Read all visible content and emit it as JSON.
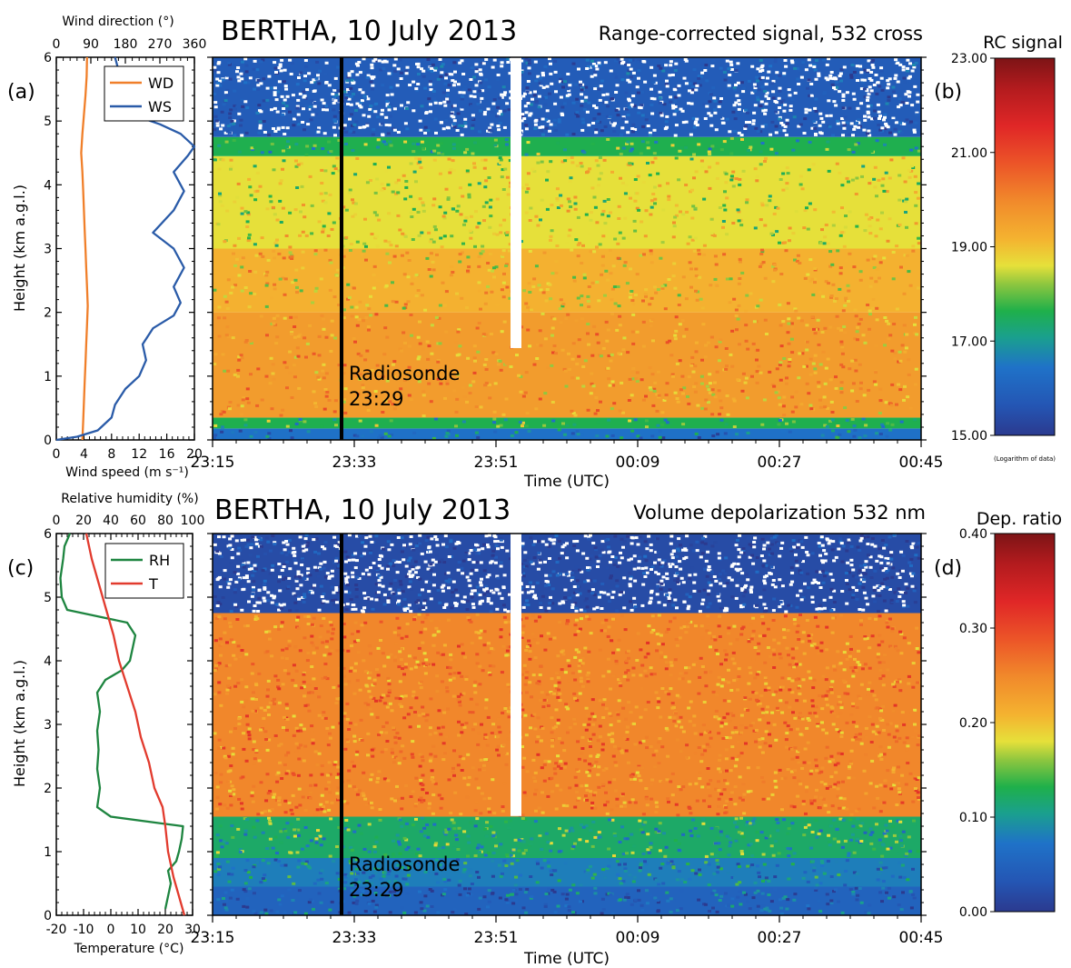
{
  "chart_data": [
    {
      "type": "line",
      "panel_label": "(a)",
      "ylabel": "Height (km a.g.l.)",
      "ylim": [
        0,
        6
      ],
      "yticks": [
        "0",
        "1",
        "2",
        "3",
        "4",
        "5",
        "6"
      ],
      "xlabel_bottom": "Wind speed (m s⁻¹)",
      "xlim_bottom": [
        0,
        20
      ],
      "xticks_bottom": [
        "0",
        "4",
        "8",
        "12",
        "16",
        "20"
      ],
      "xlabel_top": "Wind direction (°)",
      "xlim_top": [
        0,
        360
      ],
      "xticks_top": [
        "0",
        "90",
        "180",
        "270",
        "360"
      ],
      "legend": "top-right",
      "series": [
        {
          "name": "WD",
          "axis": "top",
          "color": "#f07f2a",
          "points": [
            [
              68,
              0.0
            ],
            [
              70,
              0.3
            ],
            [
              72,
              0.6
            ],
            [
              74,
              0.9
            ],
            [
              76,
              1.2
            ],
            [
              78,
              1.5
            ],
            [
              80,
              1.8
            ],
            [
              82,
              2.1
            ],
            [
              80,
              2.4
            ],
            [
              78,
              2.7
            ],
            [
              76,
              3.0
            ],
            [
              74,
              3.3
            ],
            [
              72,
              3.6
            ],
            [
              70,
              3.9
            ],
            [
              68,
              4.2
            ],
            [
              65,
              4.5
            ],
            [
              68,
              4.8
            ],
            [
              72,
              5.1
            ],
            [
              76,
              5.4
            ],
            [
              79,
              5.7
            ],
            [
              80,
              6.0
            ]
          ]
        },
        {
          "name": "WS",
          "axis": "bottom",
          "color": "#2a5ba8",
          "points": [
            [
              0,
              0.0
            ],
            [
              3,
              0.05
            ],
            [
              6,
              0.15
            ],
            [
              8,
              0.35
            ],
            [
              8.5,
              0.55
            ],
            [
              10,
              0.8
            ],
            [
              12,
              1.0
            ],
            [
              13,
              1.25
            ],
            [
              12.5,
              1.5
            ],
            [
              14,
              1.75
            ],
            [
              17,
              1.95
            ],
            [
              18,
              2.15
            ],
            [
              17,
              2.4
            ],
            [
              18.5,
              2.7
            ],
            [
              17,
              3.0
            ],
            [
              14,
              3.25
            ],
            [
              17,
              3.6
            ],
            [
              18.5,
              3.9
            ],
            [
              17,
              4.2
            ],
            [
              19,
              4.45
            ],
            [
              20,
              4.6
            ],
            [
              18,
              4.8
            ],
            [
              15,
              4.95
            ],
            [
              11,
              5.1
            ],
            [
              10,
              5.3
            ],
            [
              9.5,
              5.6
            ],
            [
              9,
              5.8
            ],
            [
              8.5,
              6.0
            ]
          ]
        }
      ]
    },
    {
      "type": "heatmap",
      "panel_label": "(b)",
      "title_left": "BERTHA, 10 July 2013",
      "title_right": "Range-corrected signal, 532 cross",
      "xlabel": "Time (UTC)",
      "xticks": [
        "23:15",
        "23:33",
        "23:51",
        "00:09",
        "00:27",
        "00:45"
      ],
      "ylim": [
        0,
        6
      ],
      "annotation": "Radiosonde\n23:29",
      "annotation_line1": "Radiosonde",
      "annotation_line2": "23:29",
      "colorbar_title": "RC signal",
      "colorbar_note": "(Logarithm of data)",
      "colorbar_ticks": [
        "23.00",
        "21.00",
        "19.00",
        "17.00",
        "15.00"
      ],
      "colorbar_range": [
        15,
        23
      ],
      "layers": [
        {
          "from_km": 0.0,
          "to_km": 0.18,
          "value": 16.4
        },
        {
          "from_km": 0.18,
          "to_km": 0.35,
          "value": 17.6
        },
        {
          "from_km": 0.35,
          "to_km": 2.0,
          "value": 19.6
        },
        {
          "from_km": 2.0,
          "to_km": 3.0,
          "value": 19.2
        },
        {
          "from_km": 3.0,
          "to_km": 4.45,
          "value": 18.6
        },
        {
          "from_km": 4.45,
          "to_km": 4.75,
          "value": 17.6
        },
        {
          "from_km": 4.75,
          "to_km": 6.0,
          "value": 15.8
        }
      ]
    },
    {
      "type": "line",
      "panel_label": "(c)",
      "ylabel": "Height (km a.g.l.)",
      "ylim": [
        0,
        6
      ],
      "yticks": [
        "0",
        "1",
        "2",
        "3",
        "4",
        "5",
        "6"
      ],
      "xlabel_bottom": "Temperature (°C)",
      "xlim_bottom": [
        -20,
        30
      ],
      "xticks_bottom": [
        "-20",
        "-10",
        "0",
        "10",
        "20",
        "30"
      ],
      "xlabel_top": "Relative humidity (%)",
      "xlim_top": [
        0,
        100
      ],
      "xticks_top": [
        "0",
        "20",
        "40",
        "60",
        "80",
        "100"
      ],
      "legend": "top-right",
      "series": [
        {
          "name": "RH",
          "axis": "top",
          "color": "#1e8540",
          "points": [
            [
              80,
              0.1
            ],
            [
              82,
              0.3
            ],
            [
              84,
              0.5
            ],
            [
              82,
              0.7
            ],
            [
              88,
              0.85
            ],
            [
              90,
              1.0
            ],
            [
              92,
              1.2
            ],
            [
              93,
              1.4
            ],
            [
              75,
              1.45
            ],
            [
              40,
              1.55
            ],
            [
              30,
              1.7
            ],
            [
              32,
              2.0
            ],
            [
              30,
              2.3
            ],
            [
              31,
              2.6
            ],
            [
              30,
              2.9
            ],
            [
              32,
              3.2
            ],
            [
              30,
              3.5
            ],
            [
              36,
              3.7
            ],
            [
              48,
              3.85
            ],
            [
              54,
              4.0
            ],
            [
              56,
              4.2
            ],
            [
              58,
              4.4
            ],
            [
              52,
              4.6
            ],
            [
              30,
              4.7
            ],
            [
              8,
              4.8
            ],
            [
              4,
              5.0
            ],
            [
              3,
              5.3
            ],
            [
              5,
              5.6
            ],
            [
              6,
              5.8
            ],
            [
              10,
              6.0
            ]
          ]
        },
        {
          "name": "T",
          "axis": "bottom",
          "color": "#e23b2e",
          "points": [
            [
              27,
              0.0
            ],
            [
              25,
              0.3
            ],
            [
              23,
              0.6
            ],
            [
              21,
              1.0
            ],
            [
              20,
              1.4
            ],
            [
              19,
              1.7
            ],
            [
              16,
              2.0
            ],
            [
              14,
              2.4
            ],
            [
              11,
              2.8
            ],
            [
              9,
              3.2
            ],
            [
              6,
              3.6
            ],
            [
              3,
              4.0
            ],
            [
              1,
              4.4
            ],
            [
              -1,
              4.7
            ],
            [
              -3,
              5.0
            ],
            [
              -5,
              5.3
            ],
            [
              -7,
              5.6
            ],
            [
              -9,
              6.0
            ]
          ]
        }
      ]
    },
    {
      "type": "heatmap",
      "panel_label": "(d)",
      "title_left": "BERTHA, 10 July 2013",
      "title_right": "Volume depolarization 532 nm",
      "xlabel": "Time (UTC)",
      "xticks": [
        "23:15",
        "23:33",
        "23:51",
        "00:09",
        "00:27",
        "00:45"
      ],
      "ylim": [
        0,
        6
      ],
      "annotation": "Radiosonde\n23:29",
      "annotation_line1": "Radiosonde",
      "annotation_line2": "23:29",
      "colorbar_title": "Dep. ratio",
      "colorbar_ticks": [
        "0.40",
        "0.30",
        "0.20",
        "0.10",
        "0.00"
      ],
      "colorbar_range": [
        0,
        0.4
      ],
      "layers": [
        {
          "from_km": 0.0,
          "to_km": 0.45,
          "value": 0.05
        },
        {
          "from_km": 0.45,
          "to_km": 0.9,
          "value": 0.08
        },
        {
          "from_km": 0.9,
          "to_km": 1.55,
          "value": 0.12
        },
        {
          "from_km": 1.55,
          "to_km": 4.75,
          "value": 0.25
        },
        {
          "from_km": 4.75,
          "to_km": 6.0,
          "value": 0.02
        }
      ]
    }
  ]
}
